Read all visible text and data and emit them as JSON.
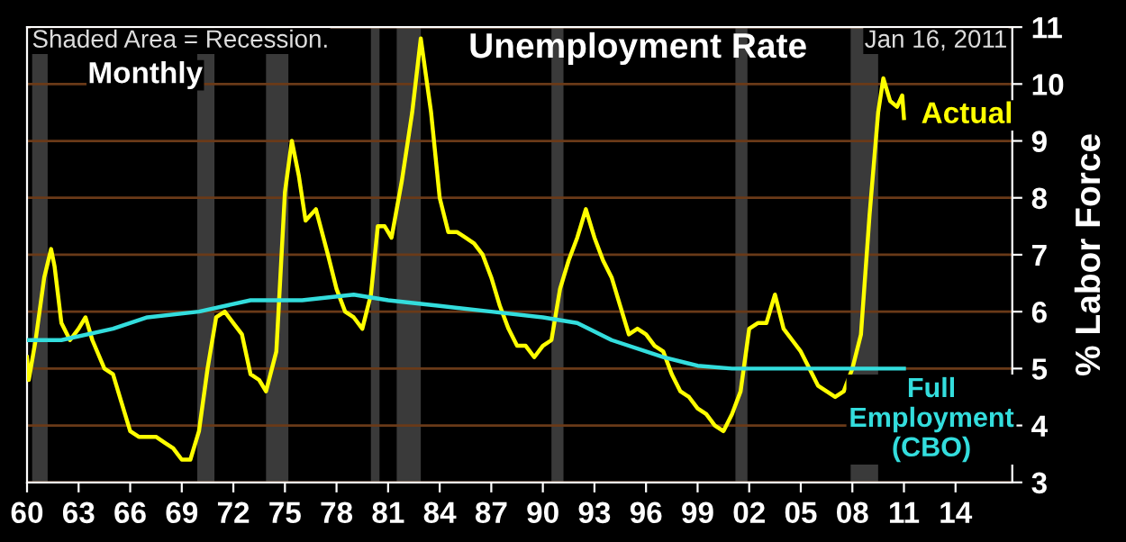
{
  "chart_data": {
    "type": "line",
    "title": "Unemployment Rate",
    "ylabel": "% Labor Force",
    "annotations": [
      "Shaded Area = Recession.",
      "Monthly",
      "Jan 16, 2011"
    ],
    "xlim": [
      1960,
      2017.3
    ],
    "ylim": [
      3,
      11
    ],
    "xticks": [
      {
        "value": 1960,
        "label": "60"
      },
      {
        "value": 1963,
        "label": "63"
      },
      {
        "value": 1966,
        "label": "66"
      },
      {
        "value": 1969,
        "label": "69"
      },
      {
        "value": 1972,
        "label": "72"
      },
      {
        "value": 1975,
        "label": "75"
      },
      {
        "value": 1978,
        "label": "78"
      },
      {
        "value": 1981,
        "label": "81"
      },
      {
        "value": 1984,
        "label": "84"
      },
      {
        "value": 1987,
        "label": "87"
      },
      {
        "value": 1990,
        "label": "90"
      },
      {
        "value": 1993,
        "label": "93"
      },
      {
        "value": 1996,
        "label": "96"
      },
      {
        "value": 1999,
        "label": "99"
      },
      {
        "value": 2002,
        "label": "02"
      },
      {
        "value": 2005,
        "label": "05"
      },
      {
        "value": 2008,
        "label": "08"
      },
      {
        "value": 2011,
        "label": "11"
      },
      {
        "value": 2014,
        "label": "14"
      }
    ],
    "yticks": [
      3,
      4,
      5,
      6,
      7,
      8,
      9,
      10,
      11
    ],
    "grid": "y",
    "legend": false,
    "marker": "none",
    "line_style": "solid",
    "bands": [
      {
        "axis": "x",
        "from": 1960.3,
        "to": 1961.2,
        "color": "#3a3a3a"
      },
      {
        "axis": "x",
        "from": 1969.9,
        "to": 1970.9,
        "color": "#3a3a3a"
      },
      {
        "axis": "x",
        "from": 1973.9,
        "to": 1975.2,
        "color": "#3a3a3a"
      },
      {
        "axis": "x",
        "from": 1980.0,
        "to": 1980.5,
        "color": "#3a3a3a"
      },
      {
        "axis": "x",
        "from": 1981.5,
        "to": 1982.9,
        "color": "#3a3a3a"
      },
      {
        "axis": "x",
        "from": 1990.5,
        "to": 1991.2,
        "color": "#3a3a3a"
      },
      {
        "axis": "x",
        "from": 2001.2,
        "to": 2001.9,
        "color": "#3a3a3a"
      },
      {
        "axis": "x",
        "from": 2007.9,
        "to": 2009.5,
        "color": "#3a3a3a"
      }
    ],
    "series": [
      {
        "name": "Actual",
        "color": "#ffff00",
        "x": [
          1960.0,
          1960.1,
          1960.5,
          1961.0,
          1961.4,
          1961.6,
          1962.0,
          1962.5,
          1963.0,
          1963.4,
          1963.8,
          1964.5,
          1965.0,
          1965.5,
          1966.0,
          1966.5,
          1967.0,
          1967.5,
          1968.0,
          1968.5,
          1969.0,
          1969.5,
          1970.0,
          1970.5,
          1971.0,
          1971.5,
          1972.0,
          1972.5,
          1973.0,
          1973.5,
          1973.9,
          1974.5,
          1975.0,
          1975.4,
          1975.8,
          1976.2,
          1976.8,
          1977.5,
          1978.0,
          1978.5,
          1979.0,
          1979.5,
          1980.0,
          1980.4,
          1980.8,
          1981.2,
          1981.8,
          1982.4,
          1982.9,
          1983.5,
          1984.0,
          1984.5,
          1985.0,
          1985.5,
          1986.0,
          1986.5,
          1987.0,
          1987.5,
          1988.0,
          1988.5,
          1989.0,
          1989.5,
          1990.0,
          1990.5,
          1991.0,
          1991.5,
          1992.0,
          1992.5,
          1993.0,
          1993.5,
          1994.0,
          1994.5,
          1995.0,
          1995.5,
          1996.0,
          1996.5,
          1997.0,
          1997.5,
          1998.0,
          1998.5,
          1999.0,
          1999.5,
          2000.0,
          2000.5,
          2001.0,
          2001.5,
          2002.0,
          2002.5,
          2003.0,
          2003.5,
          2004.0,
          2004.5,
          2005.0,
          2005.5,
          2006.0,
          2006.5,
          2007.0,
          2007.5,
          2008.0,
          2008.5,
          2009.0,
          2009.5,
          2009.8,
          2010.2,
          2010.6,
          2010.9,
          2011.0
        ],
        "values": [
          5.2,
          4.8,
          5.5,
          6.6,
          7.1,
          6.8,
          5.8,
          5.5,
          5.7,
          5.9,
          5.5,
          5.0,
          4.9,
          4.4,
          3.9,
          3.8,
          3.8,
          3.8,
          3.7,
          3.6,
          3.4,
          3.4,
          3.9,
          5.0,
          5.9,
          6.0,
          5.8,
          5.6,
          4.9,
          4.8,
          4.6,
          5.3,
          8.1,
          9.0,
          8.4,
          7.6,
          7.8,
          7.0,
          6.4,
          6.0,
          5.9,
          5.7,
          6.3,
          7.5,
          7.5,
          7.3,
          8.3,
          9.5,
          10.8,
          9.5,
          8.0,
          7.4,
          7.4,
          7.3,
          7.2,
          7.0,
          6.6,
          6.1,
          5.7,
          5.4,
          5.4,
          5.2,
          5.4,
          5.5,
          6.4,
          6.9,
          7.3,
          7.8,
          7.3,
          6.9,
          6.6,
          6.1,
          5.6,
          5.7,
          5.6,
          5.4,
          5.3,
          4.9,
          4.6,
          4.5,
          4.3,
          4.2,
          4.0,
          3.9,
          4.2,
          4.6,
          5.7,
          5.8,
          5.8,
          6.3,
          5.7,
          5.5,
          5.3,
          5.0,
          4.7,
          4.6,
          4.5,
          4.6,
          5.0,
          5.6,
          7.7,
          9.5,
          10.1,
          9.7,
          9.6,
          9.8,
          9.4
        ]
      },
      {
        "name": "Full Employment (CBO)",
        "color": "#33dddd",
        "x": [
          1960,
          1962,
          1965,
          1967,
          1970,
          1973,
          1976,
          1979,
          1981,
          1984,
          1987,
          1990,
          1992,
          1994,
          1997,
          1999,
          2001,
          2011
        ],
        "values": [
          5.5,
          5.5,
          5.7,
          5.9,
          6.0,
          6.2,
          6.2,
          6.3,
          6.2,
          6.1,
          6.0,
          5.9,
          5.8,
          5.5,
          5.2,
          5.05,
          5.0,
          5.0
        ]
      }
    ]
  }
}
